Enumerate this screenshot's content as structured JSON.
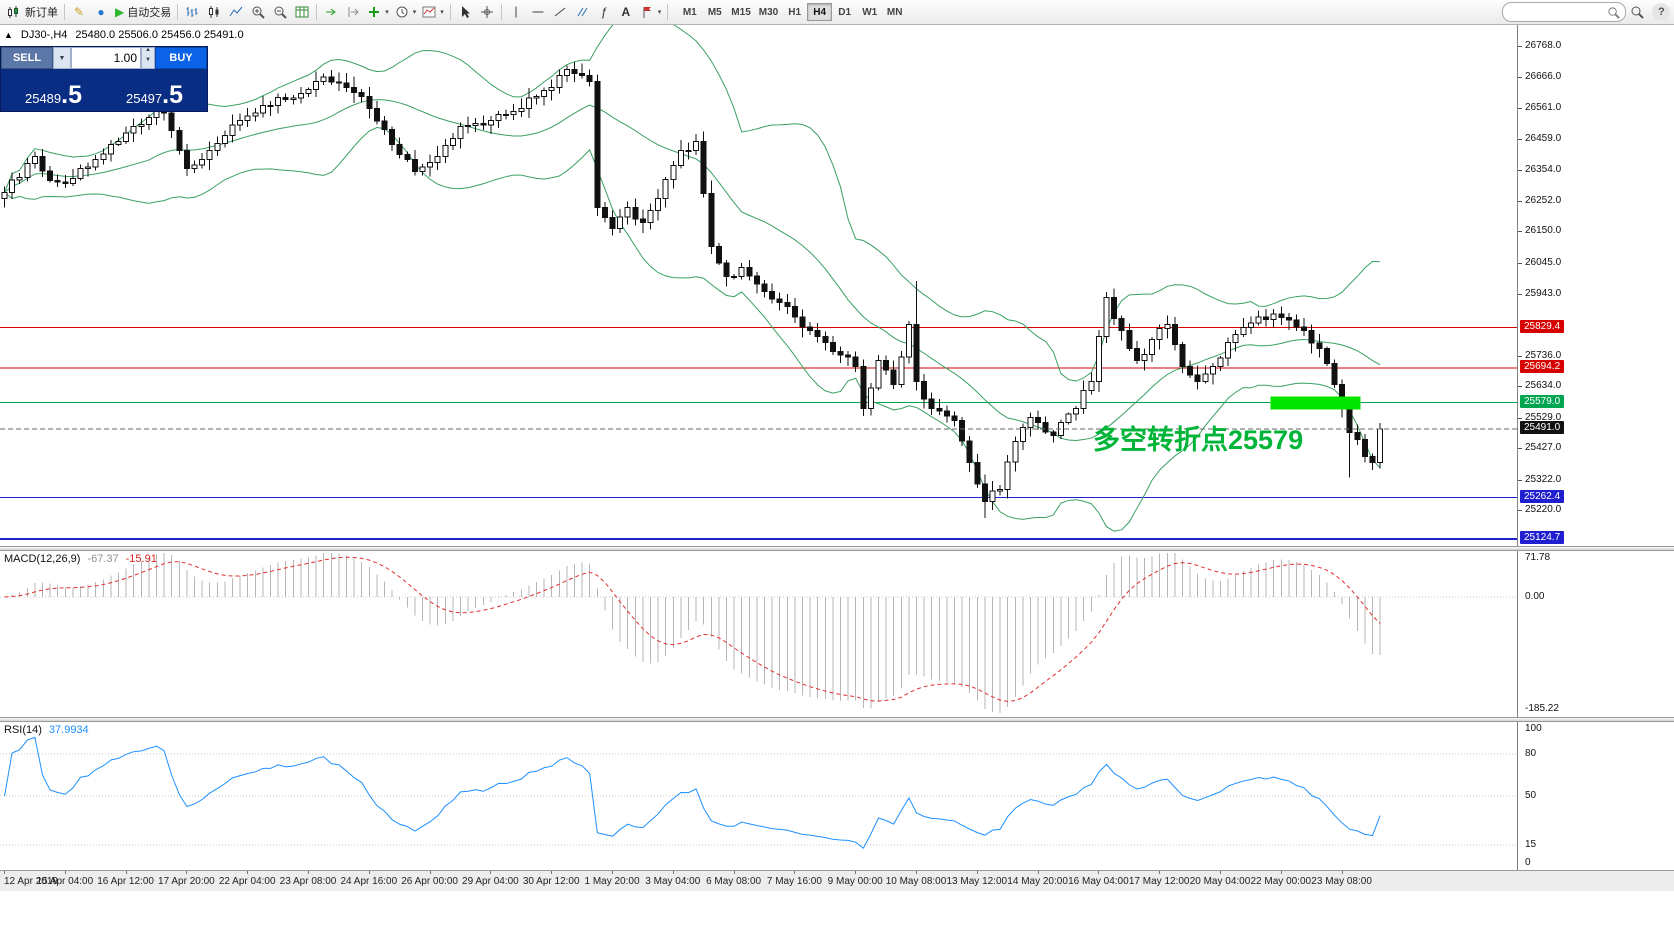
{
  "toolbar": {
    "new_order_label": "新订单",
    "autotrade_label": "自动交易",
    "timeframes": [
      "M1",
      "M5",
      "M15",
      "M30",
      "H1",
      "H4",
      "D1",
      "W1",
      "MN"
    ],
    "active_timeframe": "H4",
    "search_value": "",
    "help_label": "?"
  },
  "symbol_bar": {
    "symbol": "DJ30-,H4",
    "ohlc": "25480.0 25506.0 25456.0 25491.0"
  },
  "trade_panel": {
    "sell_label": "SELL",
    "buy_label": "BUY",
    "lot": "1.00",
    "sell_price_main": "25489",
    "sell_price_frac": ".5",
    "buy_price_main": "25497",
    "buy_price_frac": ".5"
  },
  "chart_data": {
    "type": "candlestick",
    "symbol": "DJ30-",
    "period": "H4",
    "style": {
      "bull": "#ffffff",
      "bear": "#111111",
      "wick": "#111111"
    },
    "price_axis": {
      "labels": [
        26768.0,
        26666.0,
        26561.0,
        26459.0,
        26354.0,
        26252.0,
        26150.0,
        26045.0,
        25943.0,
        25736.0,
        25634.0,
        25529.0,
        25427.0,
        25322.0,
        25220.0
      ]
    },
    "levels": [
      {
        "price": 25829.4,
        "label": "25829.4",
        "color": "#d60000",
        "width": 1
      },
      {
        "price": 25694.2,
        "label": "25694.2",
        "color": "#d60000",
        "width": 1
      },
      {
        "price": 25579.0,
        "label": "25579.0",
        "color": "#00a550",
        "width": 1
      },
      {
        "price": 25262.4,
        "label": "25262.4",
        "color": "#1f1fd0",
        "width": 1
      },
      {
        "price": 25124.7,
        "label": "25124.7",
        "color": "#1f1fd0",
        "width": 2
      }
    ],
    "current_price": {
      "price": 25491.0,
      "label": "25491.0"
    },
    "highlight": {
      "from_candle": 167,
      "to_candle": 178,
      "price": 25579,
      "color": "#00e400"
    },
    "annotation": {
      "text": "多空转折点25579",
      "color": "#00b438"
    },
    "candle_count": 182,
    "close_anchors": [
      [
        0,
        26280
      ],
      [
        2,
        26330
      ],
      [
        4,
        26400
      ],
      [
        6,
        26320
      ],
      [
        8,
        26310
      ],
      [
        10,
        26360
      ],
      [
        12,
        26390
      ],
      [
        14,
        26440
      ],
      [
        17,
        26500
      ],
      [
        19,
        26530
      ],
      [
        21,
        26545
      ],
      [
        23,
        26420
      ],
      [
        24,
        26360
      ],
      [
        26,
        26390
      ],
      [
        27,
        26420
      ],
      [
        29,
        26470
      ],
      [
        31,
        26520
      ],
      [
        33,
        26545
      ],
      [
        35,
        26570
      ],
      [
        37,
        26590
      ],
      [
        39,
        26610
      ],
      [
        41,
        26650
      ],
      [
        42,
        26665
      ],
      [
        44,
        26645
      ],
      [
        45,
        26630
      ],
      [
        47,
        26600
      ],
      [
        48,
        26560
      ],
      [
        50,
        26490
      ],
      [
        51,
        26440
      ],
      [
        53,
        26390
      ],
      [
        54,
        26350
      ],
      [
        56,
        26380
      ],
      [
        57,
        26400
      ],
      [
        59,
        26460
      ],
      [
        60,
        26500
      ],
      [
        62,
        26510
      ],
      [
        64,
        26520
      ],
      [
        66,
        26540
      ],
      [
        68,
        26560
      ],
      [
        70,
        26600
      ],
      [
        71,
        26620
      ],
      [
        73,
        26670
      ],
      [
        74,
        26690
      ],
      [
        76,
        26670
      ],
      [
        77,
        26650
      ],
      [
        78,
        26230
      ],
      [
        80,
        26160
      ],
      [
        82,
        26230
      ],
      [
        84,
        26180
      ],
      [
        86,
        26260
      ],
      [
        88,
        26370
      ],
      [
        89,
        26420
      ],
      [
        91,
        26450
      ],
      [
        93,
        26100
      ],
      [
        95,
        26000
      ],
      [
        97,
        26030
      ],
      [
        100,
        25950
      ],
      [
        103,
        25900
      ],
      [
        106,
        25820
      ],
      [
        109,
        25750
      ],
      [
        112,
        25700
      ],
      [
        113,
        25560
      ],
      [
        115,
        25720
      ],
      [
        117,
        25640
      ],
      [
        119,
        25840
      ],
      [
        120,
        25650
      ],
      [
        122,
        25560
      ],
      [
        125,
        25520
      ],
      [
        127,
        25380
      ],
      [
        129,
        25250
      ],
      [
        131,
        25290
      ],
      [
        133,
        25450
      ],
      [
        135,
        25530
      ],
      [
        138,
        25470
      ],
      [
        141,
        25560
      ],
      [
        143,
        25650
      ],
      [
        145,
        25930
      ],
      [
        147,
        25820
      ],
      [
        149,
        25720
      ],
      [
        151,
        25790
      ],
      [
        153,
        25840
      ],
      [
        155,
        25700
      ],
      [
        157,
        25650
      ],
      [
        159,
        25700
      ],
      [
        161,
        25780
      ],
      [
        163,
        25830
      ],
      [
        165,
        25865
      ],
      [
        167,
        25875
      ],
      [
        169,
        25855
      ],
      [
        171,
        25820
      ],
      [
        173,
        25760
      ],
      [
        175,
        25640
      ],
      [
        177,
        25480
      ],
      [
        179,
        25400
      ],
      [
        180,
        25380
      ],
      [
        181,
        25491
      ]
    ],
    "wick_overrides": [
      {
        "i": 93,
        "high": 26320
      },
      {
        "i": 120,
        "high": 25985
      },
      {
        "i": 129,
        "low": 25195
      },
      {
        "i": 145,
        "high": 25948
      },
      {
        "i": 177,
        "low": 25330
      }
    ],
    "bollinger": {
      "period": 20,
      "deviation": 2,
      "color": "#3aa063"
    },
    "macd": {
      "label": "MACD(12,26,9)",
      "value_main": "-67.37",
      "value_signal": "-15.91",
      "axis": [
        {
          "v": 71.78,
          "t": "71.78"
        },
        {
          "v": 0,
          "t": "0.00"
        },
        {
          "v": -185.22,
          "t": "-185.22"
        }
      ],
      "norm_min": -185.22,
      "hist_color": "#b6b6b6",
      "signal_color": "#e03030"
    },
    "rsi": {
      "label": "RSI(14)",
      "value": "37.9934",
      "axis": [
        100,
        80,
        50,
        15,
        0
      ],
      "levels": [
        80,
        50,
        15
      ],
      "color": "#1e90ff"
    },
    "time_labels": [
      "12 Apr 2019",
      "15 Apr 04:00",
      "16 Apr 12:00",
      "17 Apr 20:00",
      "22 Apr 04:00",
      "23 Apr 08:00",
      "24 Apr 16:00",
      "26 Apr 00:00",
      "29 Apr 04:00",
      "30 Apr 12:00",
      "1 May 20:00",
      "3 May 04:00",
      "6 May 08:00",
      "7 May 16:00",
      "9 May 00:00",
      "10 May 08:00",
      "13 May 12:00",
      "14 May 20:00",
      "16 May 04:00",
      "17 May 12:00",
      "20 May 04:00",
      "22 May 00:00",
      "23 May 08:00"
    ]
  }
}
